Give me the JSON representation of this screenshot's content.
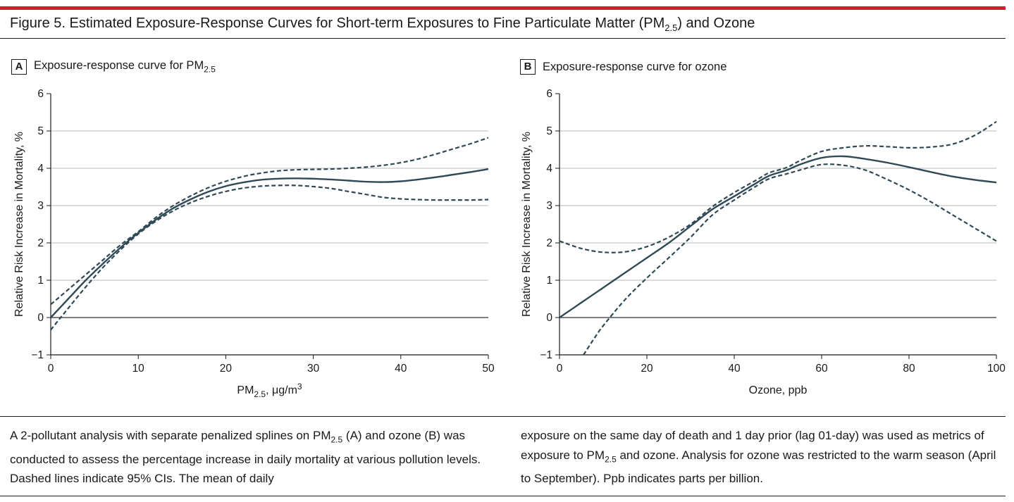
{
  "figure": {
    "title_main": "Figure 5. Estimated Exposure-Response Curves for Short-term Exposures to Fine Particulate Matter (PM",
    "title_sub": "2.5",
    "title_end": ") and Ozone",
    "accent_color": "#d0202f",
    "line_color": "#2f4a56"
  },
  "panels": [
    {
      "letter": "A",
      "title_main": "Exposure-response curve for PM",
      "title_sub": "2.5",
      "xlabel_main": "PM",
      "xlabel_sub": "2.5",
      "xlabel_end": ", μg/m",
      "xlabel_sup": "3",
      "ylabel": "Relative Risk Increase in Mortality, %"
    },
    {
      "letter": "B",
      "title_main": "Exposure-response curve for ozone",
      "xlabel_main": "Ozone, ppb",
      "ylabel": "Relative Risk Increase in Mortality, %"
    }
  ],
  "chart_data": [
    {
      "type": "line",
      "xlim": [
        0,
        50
      ],
      "ylim": [
        -1,
        6
      ],
      "xticks": [
        0,
        10,
        20,
        30,
        40,
        50
      ],
      "yticks": [
        -1,
        0,
        1,
        2,
        3,
        4,
        5,
        6
      ],
      "grid": "horizontal",
      "series": [
        {
          "style": "solid",
          "x": [
            0,
            2,
            4,
            6,
            8,
            10,
            12,
            14,
            16,
            18,
            20,
            22,
            24,
            26,
            28,
            30,
            32,
            34,
            36,
            38,
            40,
            42,
            44,
            46,
            48,
            50
          ],
          "y": [
            0,
            0.5,
            1.0,
            1.45,
            1.88,
            2.27,
            2.62,
            2.93,
            3.17,
            3.37,
            3.52,
            3.62,
            3.69,
            3.72,
            3.73,
            3.72,
            3.7,
            3.67,
            3.64,
            3.63,
            3.65,
            3.7,
            3.76,
            3.83,
            3.9,
            3.98
          ]
        },
        {
          "style": "dashed",
          "x": [
            0,
            2,
            4,
            6,
            8,
            10,
            12,
            14,
            16,
            18,
            20,
            22,
            24,
            26,
            28,
            30,
            32,
            34,
            36,
            38,
            40,
            42,
            44,
            46,
            48,
            50
          ],
          "y": [
            0.35,
            0.75,
            1.15,
            1.55,
            1.95,
            2.3,
            2.68,
            3.0,
            3.26,
            3.48,
            3.65,
            3.78,
            3.87,
            3.93,
            3.96,
            3.97,
            3.98,
            4.0,
            4.03,
            4.08,
            4.15,
            4.25,
            4.38,
            4.52,
            4.66,
            4.82
          ]
        },
        {
          "style": "dashed",
          "x": [
            0,
            2,
            4,
            6,
            8,
            10,
            12,
            14,
            16,
            18,
            20,
            22,
            24,
            26,
            28,
            30,
            32,
            34,
            36,
            38,
            40,
            42,
            44,
            46,
            48,
            50
          ],
          "y": [
            -0.33,
            0.25,
            0.82,
            1.35,
            1.82,
            2.24,
            2.58,
            2.86,
            3.08,
            3.25,
            3.38,
            3.47,
            3.52,
            3.54,
            3.54,
            3.51,
            3.46,
            3.38,
            3.3,
            3.22,
            3.18,
            3.16,
            3.15,
            3.15,
            3.15,
            3.16
          ]
        }
      ]
    },
    {
      "type": "line",
      "xlim": [
        0,
        100
      ],
      "ylim": [
        -1,
        6
      ],
      "xticks": [
        0,
        20,
        40,
        60,
        80,
        100
      ],
      "yticks": [
        -1,
        0,
        1,
        2,
        3,
        4,
        5,
        6
      ],
      "grid": "horizontal",
      "series": [
        {
          "style": "solid",
          "x": [
            0,
            5,
            10,
            15,
            20,
            25,
            30,
            35,
            40,
            45,
            48,
            52,
            55,
            60,
            65,
            70,
            75,
            80,
            85,
            90,
            95,
            100
          ],
          "y": [
            0,
            0.4,
            0.8,
            1.2,
            1.6,
            2.0,
            2.45,
            2.9,
            3.25,
            3.6,
            3.8,
            3.95,
            4.1,
            4.28,
            4.32,
            4.25,
            4.15,
            4.03,
            3.9,
            3.78,
            3.69,
            3.62
          ]
        },
        {
          "style": "dashed",
          "x": [
            0,
            5,
            10,
            15,
            20,
            25,
            30,
            35,
            40,
            45,
            48,
            52,
            55,
            60,
            65,
            70,
            75,
            80,
            85,
            90,
            95,
            100
          ],
          "y": [
            2.05,
            1.85,
            1.75,
            1.76,
            1.9,
            2.15,
            2.5,
            2.97,
            3.35,
            3.68,
            3.88,
            4.02,
            4.2,
            4.45,
            4.55,
            4.6,
            4.58,
            4.55,
            4.57,
            4.65,
            4.88,
            5.25
          ]
        },
        {
          "style": "dashed",
          "x": [
            5.5,
            8,
            10,
            15,
            20,
            25,
            30,
            35,
            40,
            45,
            48,
            52,
            55,
            60,
            65,
            70,
            75,
            80,
            85,
            90,
            95,
            100
          ],
          "y": [
            -1,
            -0.55,
            -0.22,
            0.48,
            1.06,
            1.6,
            2.15,
            2.75,
            3.15,
            3.52,
            3.72,
            3.85,
            3.95,
            4.1,
            4.08,
            3.95,
            3.7,
            3.42,
            3.1,
            2.75,
            2.4,
            2.05
          ]
        }
      ]
    }
  ],
  "caption": {
    "left_1": "A 2-pollutant analysis with separate penalized splines on PM",
    "left_sub1": "2.5",
    "left_2": " (A) and ozone (B) was conducted to assess the percentage increase in daily mortality at various pollution levels. Dashed lines indicate 95% CIs. The mean of daily",
    "right_1": "exposure on the same day of death and 1 day prior (lag 01-day) was used as metrics of exposure to PM",
    "right_sub1": "2.5",
    "right_2": " and ozone. Analysis for ozone was restricted to the warm season (April to September). Ppb indicates parts per billion."
  }
}
